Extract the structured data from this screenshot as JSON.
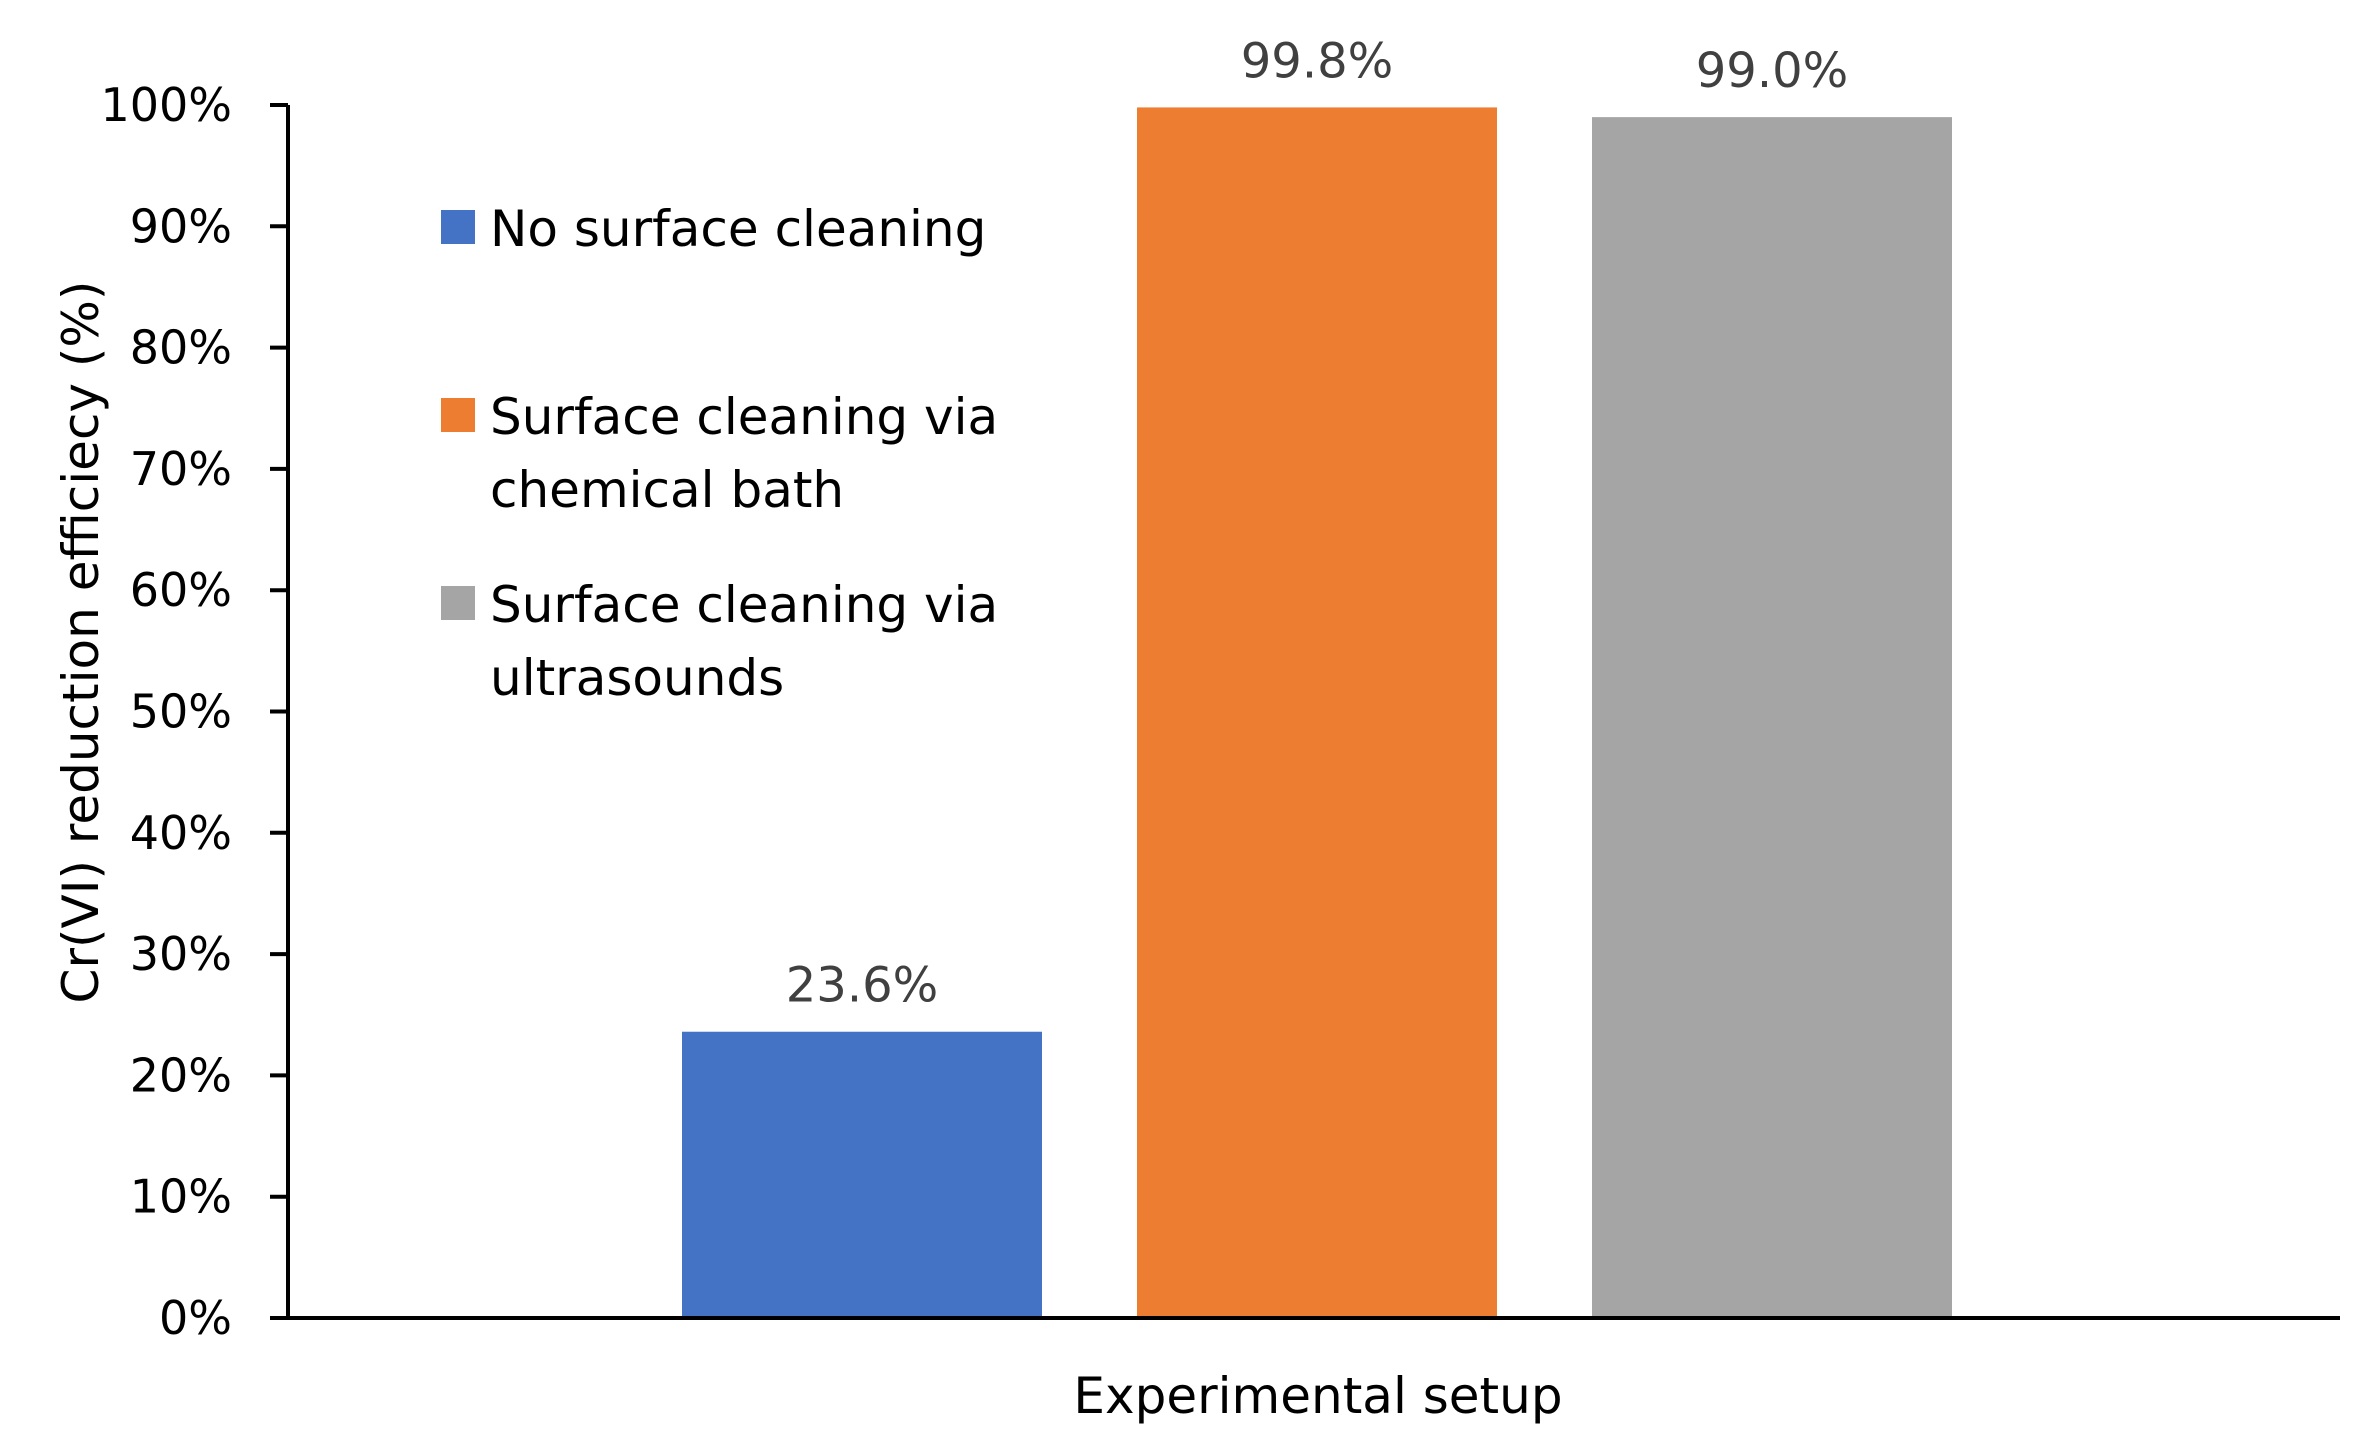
{
  "chart_data": {
    "type": "bar",
    "title": "",
    "xlabel": "Experimental setup",
    "ylabel": "Cr(VI) reduction efficiecy (%)",
    "ylim": [
      0,
      100
    ],
    "y_ticks": [
      0,
      10,
      20,
      30,
      40,
      50,
      60,
      70,
      80,
      90,
      100
    ],
    "y_tick_labels": [
      "0%",
      "10%",
      "20%",
      "30%",
      "40%",
      "50%",
      "60%",
      "70%",
      "80%",
      "90%",
      "100%"
    ],
    "grid": false,
    "legend_position": "top-left (inside plot)",
    "series": [
      {
        "name": "No surface cleaning",
        "value": 23.6,
        "label": "23.6%",
        "color": "#4472C4"
      },
      {
        "name": "Surface cleaning via chemical bath",
        "value": 99.8,
        "label": "99.8%",
        "color": "#ED7D31"
      },
      {
        "name": "Surface cleaning via ultrasounds",
        "value": 99.0,
        "label": "99.0%",
        "color": "#A5A5A5"
      }
    ],
    "legend_lines": [
      [
        "No surface cleaning"
      ],
      [
        "Surface cleaning via",
        "chemical bath"
      ],
      [
        "Surface cleaning via",
        "ultrasounds"
      ]
    ]
  }
}
